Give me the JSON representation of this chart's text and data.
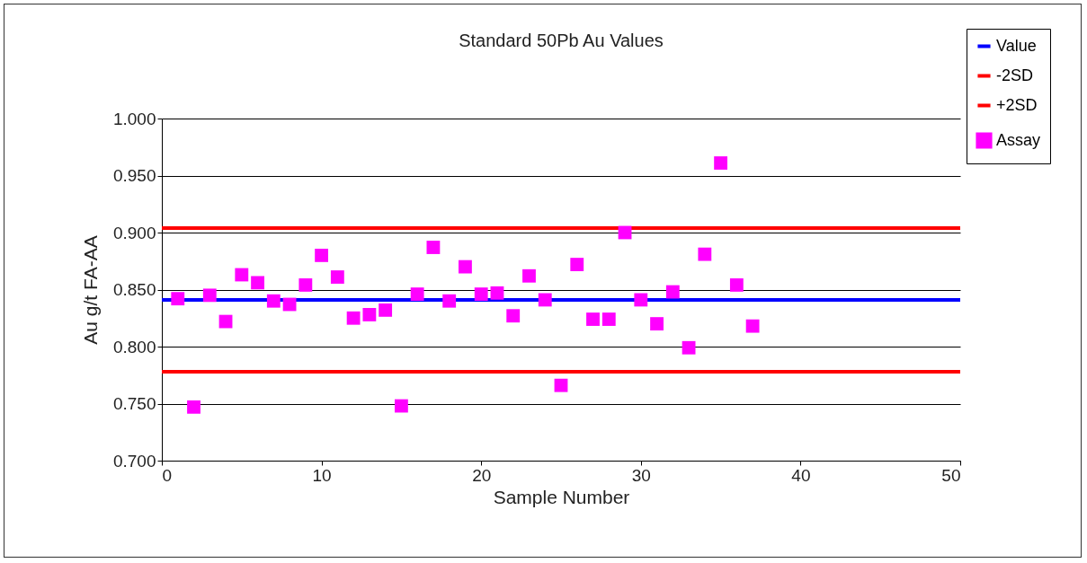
{
  "chart_data": {
    "type": "scatter",
    "title": "Standard 50Pb Au Values",
    "xlabel": "Sample Number",
    "ylabel": "Au g/t FA-AA",
    "xlim": [
      0,
      50
    ],
    "xticks": [
      0,
      10,
      20,
      30,
      40,
      50
    ],
    "ylim": [
      0.7,
      1.0
    ],
    "yticks": [
      {
        "value": 0.7,
        "label": "0.700"
      },
      {
        "value": 0.75,
        "label": "0.750"
      },
      {
        "value": 0.8,
        "label": "0.800"
      },
      {
        "value": 0.85,
        "label": "0.850"
      },
      {
        "value": 0.9,
        "label": "0.900"
      },
      {
        "value": 0.95,
        "label": "0.950"
      },
      {
        "value": 1.0,
        "label": "1.000"
      }
    ],
    "grid": "y",
    "legend": "top right",
    "series": [
      {
        "name": "Value",
        "type": "line",
        "color": "#0000ff",
        "x": [
          0,
          50
        ],
        "values": [
          0.841,
          0.841
        ]
      },
      {
        "name": "-2SD",
        "type": "line",
        "color": "#ff0000",
        "x": [
          0,
          50
        ],
        "values": [
          0.778,
          0.778
        ]
      },
      {
        "name": "+2SD",
        "type": "line",
        "color": "#ff0000",
        "x": [
          0,
          50
        ],
        "values": [
          0.904,
          0.904
        ]
      },
      {
        "name": "Assay",
        "type": "scatter",
        "marker": "square",
        "color": "#ff00ff",
        "x": [
          1,
          2,
          3,
          4,
          5,
          6,
          7,
          8,
          9,
          10,
          11,
          12,
          13,
          14,
          15,
          16,
          17,
          18,
          19,
          20,
          21,
          22,
          23,
          24,
          25,
          26,
          27,
          28,
          29,
          30,
          31,
          32,
          33,
          34,
          35,
          36,
          37
        ],
        "values": [
          0.842,
          0.747,
          0.845,
          0.822,
          0.863,
          0.856,
          0.84,
          0.837,
          0.854,
          0.88,
          0.861,
          0.825,
          0.828,
          0.832,
          0.748,
          0.846,
          0.887,
          0.84,
          0.87,
          0.846,
          0.847,
          0.827,
          0.862,
          0.841,
          0.766,
          0.872,
          0.824,
          0.824,
          0.9,
          0.841,
          0.82,
          0.848,
          0.799,
          0.881,
          0.961,
          0.854,
          0.818
        ]
      }
    ]
  }
}
